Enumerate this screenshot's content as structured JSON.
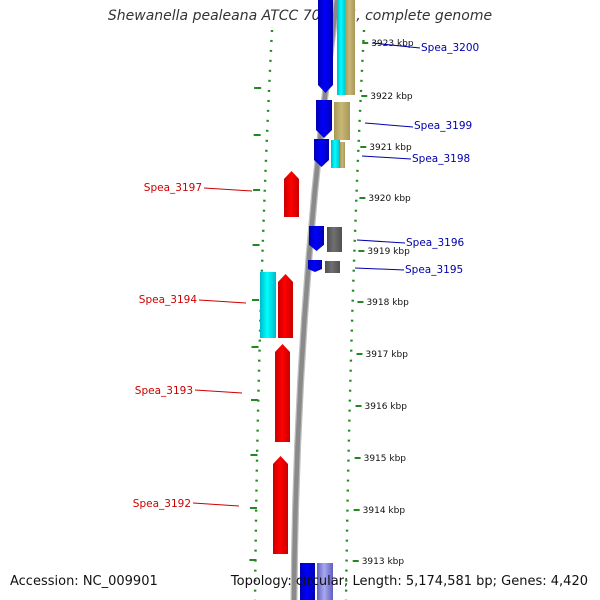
{
  "title": "Shewanella pealeana ATCC 700345, complete genome",
  "footer": {
    "accession": "Accession: NC_009901",
    "summary": "Topology: circular; Length: 5,174,581 bp; Genes: 4,420"
  },
  "colors": {
    "forward_gene": "#ff0000",
    "reverse_gene": "#0000ff",
    "forward_label": "#cc0000",
    "reverse_label": "#0000aa",
    "cyan_feature": "#00ffff",
    "tan_feature": "#c8b878",
    "gray_feature": "#707070",
    "lavender_feature": "#8080e0",
    "backbone": "#8a8a8a",
    "tick_dots": "#228822"
  },
  "kbp_marks": [
    {
      "kb": 3923,
      "label": "3923 kbp"
    },
    {
      "kb": 3922,
      "label": "3922 kbp"
    },
    {
      "kb": 3921,
      "label": "3921 kbp"
    },
    {
      "kb": 3920,
      "label": "3920 kbp"
    },
    {
      "kb": 3919,
      "label": "3919 kbp"
    },
    {
      "kb": 3918,
      "label": "3918 kbp"
    },
    {
      "kb": 3917,
      "label": "3917 kbp"
    },
    {
      "kb": 3916,
      "label": "3916 kbp"
    },
    {
      "kb": 3915,
      "label": "3915 kbp"
    },
    {
      "kb": 3914,
      "label": "3914 kbp"
    },
    {
      "kb": 3913,
      "label": "3913 kbp"
    }
  ],
  "gene_labels": [
    {
      "name": "Spea_3200",
      "strand": "reverse"
    },
    {
      "name": "Spea_3199",
      "strand": "reverse"
    },
    {
      "name": "Spea_3198",
      "strand": "reverse"
    },
    {
      "name": "Spea_3197",
      "strand": "forward"
    },
    {
      "name": "Spea_3196",
      "strand": "reverse"
    },
    {
      "name": "Spea_3195",
      "strand": "reverse"
    },
    {
      "name": "Spea_3194",
      "strand": "forward"
    },
    {
      "name": "Spea_3193",
      "strand": "forward"
    },
    {
      "name": "Spea_3192",
      "strand": "forward"
    }
  ]
}
